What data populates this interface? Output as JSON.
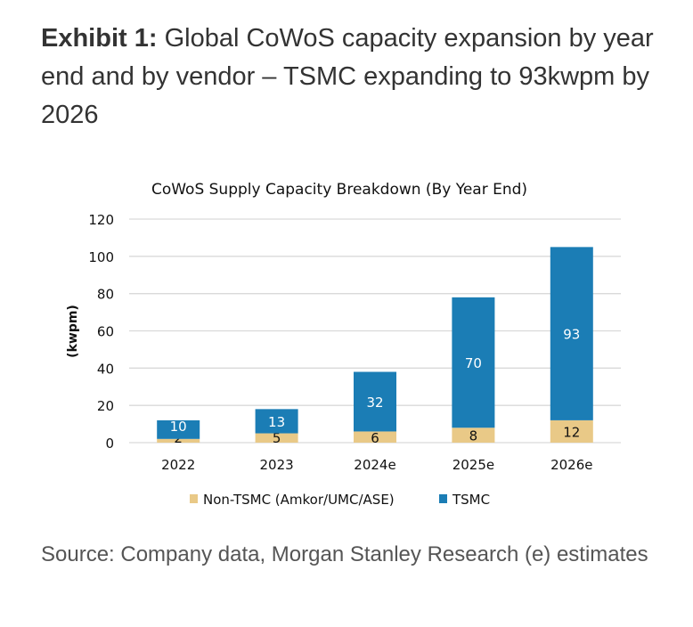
{
  "heading": {
    "prefix": "Exhibit 1:",
    "text": " Global CoWoS capacity expansion by year end and by vendor – TSMC expanding to 93kwpm by 2026"
  },
  "source": "Source: Company data, Morgan Stanley Research (e) estimates",
  "colors": {
    "tsmc": "#1b7db5",
    "non_tsmc": "#e9c987",
    "grid": "#d9d9d9"
  },
  "chart_data": {
    "type": "bar",
    "stacked": true,
    "title": "CoWoS Supply Capacity Breakdown (By Year End)",
    "xlabel": "",
    "ylabel": "(kwpm)",
    "ylim": [
      0,
      120
    ],
    "yticks": [
      0,
      20,
      40,
      60,
      80,
      100,
      120
    ],
    "grid": true,
    "legend_position": "bottom",
    "categories": [
      "2022",
      "2023",
      "2024e",
      "2025e",
      "2026e"
    ],
    "series": [
      {
        "name": "Non-TSMC (Amkor/UMC/ASE)",
        "values": [
          2,
          5,
          6,
          8,
          12
        ]
      },
      {
        "name": "TSMC",
        "values": [
          10,
          13,
          32,
          70,
          93
        ]
      }
    ]
  }
}
